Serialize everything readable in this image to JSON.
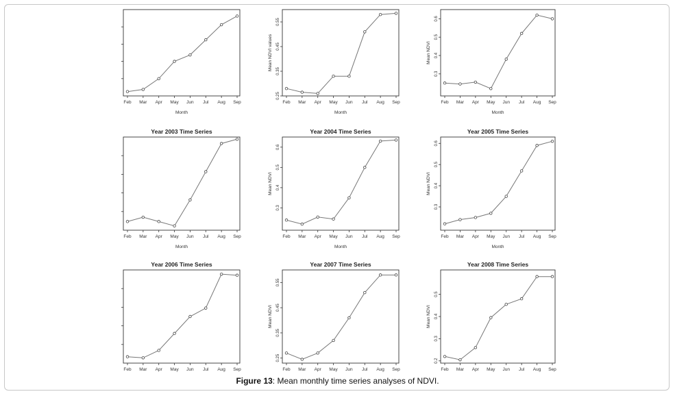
{
  "caption": {
    "label": "Figure 13",
    "text": ": Mean monthly time series analyses of NDVI."
  },
  "chart_data": [
    {
      "type": "line",
      "title": "",
      "xlabel": "Month",
      "ylabel": "",
      "categories": [
        "Feb",
        "Mar",
        "Apr",
        "May",
        "Jun",
        "Jul",
        "Aug",
        "Sep"
      ],
      "values": [
        0.22,
        0.23,
        0.28,
        0.36,
        0.39,
        0.46,
        0.53,
        0.57
      ],
      "ylim": [
        0.2,
        0.6
      ],
      "yticks": [],
      "yticklabels": []
    },
    {
      "type": "line",
      "title": "",
      "xlabel": "Month",
      "ylabel": "Mean NDVI values",
      "categories": [
        "Feb",
        "Mar",
        "Apr",
        "May",
        "Jun",
        "Jul",
        "Aug",
        "Sep"
      ],
      "values": [
        0.28,
        0.265,
        0.26,
        0.33,
        0.33,
        0.51,
        0.58,
        0.585
      ],
      "ylim": [
        0.25,
        0.6
      ],
      "yticks": [
        0.25,
        0.35,
        0.45,
        0.55
      ],
      "yticklabels": [
        "0.25",
        "0.35",
        "0.45",
        "0.55"
      ]
    },
    {
      "type": "line",
      "title": "",
      "xlabel": "Month",
      "ylabel": "Mean NDVI",
      "categories": [
        "Feb",
        "Mar",
        "Apr",
        "May",
        "Jun",
        "Jul",
        "Aug",
        "Sep"
      ],
      "values": [
        0.25,
        0.245,
        0.255,
        0.22,
        0.38,
        0.52,
        0.62,
        0.6
      ],
      "ylim": [
        0.18,
        0.65
      ],
      "yticks": [
        0.3,
        0.4,
        0.5,
        0.6
      ],
      "yticklabels": [
        "0.3",
        "0.4",
        "0.5",
        "0.6"
      ]
    },
    {
      "type": "line",
      "title": "Year 2003 Time Series",
      "xlabel": "Month",
      "ylabel": "",
      "categories": [
        "Feb",
        "Mar",
        "Apr",
        "May",
        "Jun",
        "Jul",
        "Aug",
        "Sep"
      ],
      "values": [
        0.24,
        0.26,
        0.24,
        0.22,
        0.34,
        0.47,
        0.6,
        0.62
      ],
      "ylim": [
        0.2,
        0.63
      ],
      "yticks": [],
      "yticklabels": []
    },
    {
      "type": "line",
      "title": "Year 2004 Time Series",
      "xlabel": "Month",
      "ylabel": "Mean NDVI",
      "categories": [
        "Feb",
        "Mar",
        "Apr",
        "May",
        "Jun",
        "Jul",
        "Aug",
        "Sep"
      ],
      "values": [
        0.24,
        0.22,
        0.255,
        0.245,
        0.35,
        0.5,
        0.63,
        0.635
      ],
      "ylim": [
        0.19,
        0.65
      ],
      "yticks": [
        0.3,
        0.4,
        0.5,
        0.6
      ],
      "yticklabels": [
        "0.3",
        "0.4",
        "0.5",
        "0.6"
      ]
    },
    {
      "type": "line",
      "title": "Year 2005 Time Series",
      "xlabel": "Month",
      "ylabel": "Mean NDVI",
      "categories": [
        "Feb",
        "Mar",
        "Apr",
        "May",
        "Jun",
        "Jul",
        "Aug",
        "Sep"
      ],
      "values": [
        0.22,
        0.24,
        0.25,
        0.27,
        0.35,
        0.47,
        0.59,
        0.61
      ],
      "ylim": [
        0.19,
        0.63
      ],
      "yticks": [
        0.3,
        0.4,
        0.5,
        0.6
      ],
      "yticklabels": [
        "0.3",
        "0.4",
        "0.5",
        "0.6"
      ]
    },
    {
      "type": "line",
      "title": "Year 2006 Time Series",
      "xlabel": "",
      "ylabel": "",
      "categories": [
        "Feb",
        "Mar",
        "Apr",
        "May",
        "Jun",
        "Jul",
        "Aug",
        "Sep"
      ],
      "values": [
        0.22,
        0.215,
        0.25,
        0.33,
        0.41,
        0.45,
        0.61,
        0.605
      ],
      "ylim": [
        0.19,
        0.63
      ],
      "yticks": [],
      "yticklabels": []
    },
    {
      "type": "line",
      "title": "Year 2007 Time Series",
      "xlabel": "",
      "ylabel": "Mean NDVI",
      "categories": [
        "Feb",
        "Mar",
        "Apr",
        "May",
        "Jun",
        "Jul",
        "Aug",
        "Sep"
      ],
      "values": [
        0.27,
        0.245,
        0.27,
        0.32,
        0.41,
        0.51,
        0.58,
        0.58
      ],
      "ylim": [
        0.23,
        0.6
      ],
      "yticks": [
        0.25,
        0.35,
        0.45,
        0.55
      ],
      "yticklabels": [
        "0.25",
        "0.35",
        "0.45",
        "0.55"
      ]
    },
    {
      "type": "line",
      "title": "Year 2008 Time Series",
      "xlabel": "",
      "ylabel": "Mean NDVI",
      "categories": [
        "Feb",
        "Mar",
        "Apr",
        "May",
        "Jun",
        "Jul",
        "Aug",
        "Sep"
      ],
      "values": [
        0.22,
        0.205,
        0.26,
        0.395,
        0.455,
        0.48,
        0.58,
        0.58
      ],
      "ylim": [
        0.19,
        0.61
      ],
      "yticks": [
        0.2,
        0.3,
        0.4,
        0.5
      ],
      "yticklabels": [
        "0.2",
        "0.3",
        "0.4",
        "0.5"
      ]
    }
  ]
}
